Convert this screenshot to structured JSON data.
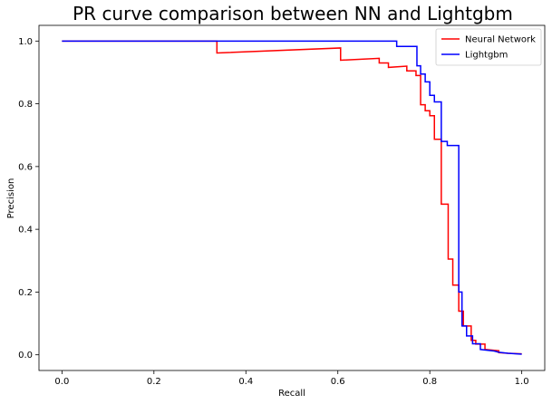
{
  "chart_data": {
    "type": "line",
    "title": "PR curve comparison between NN and Lightgbm",
    "xlabel": "Recall",
    "ylabel": "Precision",
    "xlim": [
      -0.05,
      1.05
    ],
    "ylim": [
      -0.05,
      1.05
    ],
    "xticks": [
      "0.0",
      "0.2",
      "0.4",
      "0.6",
      "0.8",
      "1.0"
    ],
    "yticks": [
      "0.0",
      "0.2",
      "0.4",
      "0.6",
      "0.8",
      "1.0"
    ],
    "grid": false,
    "legend_position": "top-right",
    "series": [
      {
        "name": "Neural Network",
        "color": "#ff0000",
        "points": [
          [
            0.0,
            1.0
          ],
          [
            0.337,
            1.0
          ],
          [
            0.337,
            0.962
          ],
          [
            0.606,
            0.978
          ],
          [
            0.606,
            0.939
          ],
          [
            0.69,
            0.945
          ],
          [
            0.69,
            0.93
          ],
          [
            0.71,
            0.93
          ],
          [
            0.71,
            0.916
          ],
          [
            0.75,
            0.92
          ],
          [
            0.75,
            0.905
          ],
          [
            0.77,
            0.905
          ],
          [
            0.77,
            0.89
          ],
          [
            0.78,
            0.89
          ],
          [
            0.78,
            0.797
          ],
          [
            0.79,
            0.797
          ],
          [
            0.79,
            0.778
          ],
          [
            0.8,
            0.778
          ],
          [
            0.8,
            0.762
          ],
          [
            0.81,
            0.762
          ],
          [
            0.81,
            0.687
          ],
          [
            0.825,
            0.687
          ],
          [
            0.825,
            0.48
          ],
          [
            0.84,
            0.48
          ],
          [
            0.84,
            0.305
          ],
          [
            0.85,
            0.305
          ],
          [
            0.85,
            0.222
          ],
          [
            0.863,
            0.222
          ],
          [
            0.863,
            0.139
          ],
          [
            0.873,
            0.139
          ],
          [
            0.873,
            0.092
          ],
          [
            0.89,
            0.092
          ],
          [
            0.89,
            0.046
          ],
          [
            0.9,
            0.046
          ],
          [
            0.9,
            0.034
          ],
          [
            0.92,
            0.034
          ],
          [
            0.92,
            0.017
          ],
          [
            0.95,
            0.013
          ],
          [
            0.95,
            0.007
          ],
          [
            0.97,
            0.005
          ],
          [
            1.0,
            0.003
          ]
        ]
      },
      {
        "name": "Lightgbm",
        "color": "#0000ff",
        "points": [
          [
            0.0,
            1.0
          ],
          [
            0.728,
            1.0
          ],
          [
            0.728,
            0.983
          ],
          [
            0.772,
            0.983
          ],
          [
            0.772,
            0.921
          ],
          [
            0.78,
            0.921
          ],
          [
            0.78,
            0.895
          ],
          [
            0.79,
            0.895
          ],
          [
            0.79,
            0.87
          ],
          [
            0.8,
            0.87
          ],
          [
            0.8,
            0.827
          ],
          [
            0.81,
            0.827
          ],
          [
            0.81,
            0.806
          ],
          [
            0.825,
            0.806
          ],
          [
            0.825,
            0.68
          ],
          [
            0.838,
            0.68
          ],
          [
            0.838,
            0.667
          ],
          [
            0.863,
            0.667
          ],
          [
            0.863,
            0.2
          ],
          [
            0.87,
            0.2
          ],
          [
            0.87,
            0.092
          ],
          [
            0.88,
            0.092
          ],
          [
            0.88,
            0.06
          ],
          [
            0.893,
            0.06
          ],
          [
            0.893,
            0.035
          ],
          [
            0.91,
            0.035
          ],
          [
            0.91,
            0.017
          ],
          [
            0.94,
            0.012
          ],
          [
            0.95,
            0.008
          ],
          [
            0.97,
            0.005
          ],
          [
            1.0,
            0.002
          ]
        ]
      }
    ]
  }
}
